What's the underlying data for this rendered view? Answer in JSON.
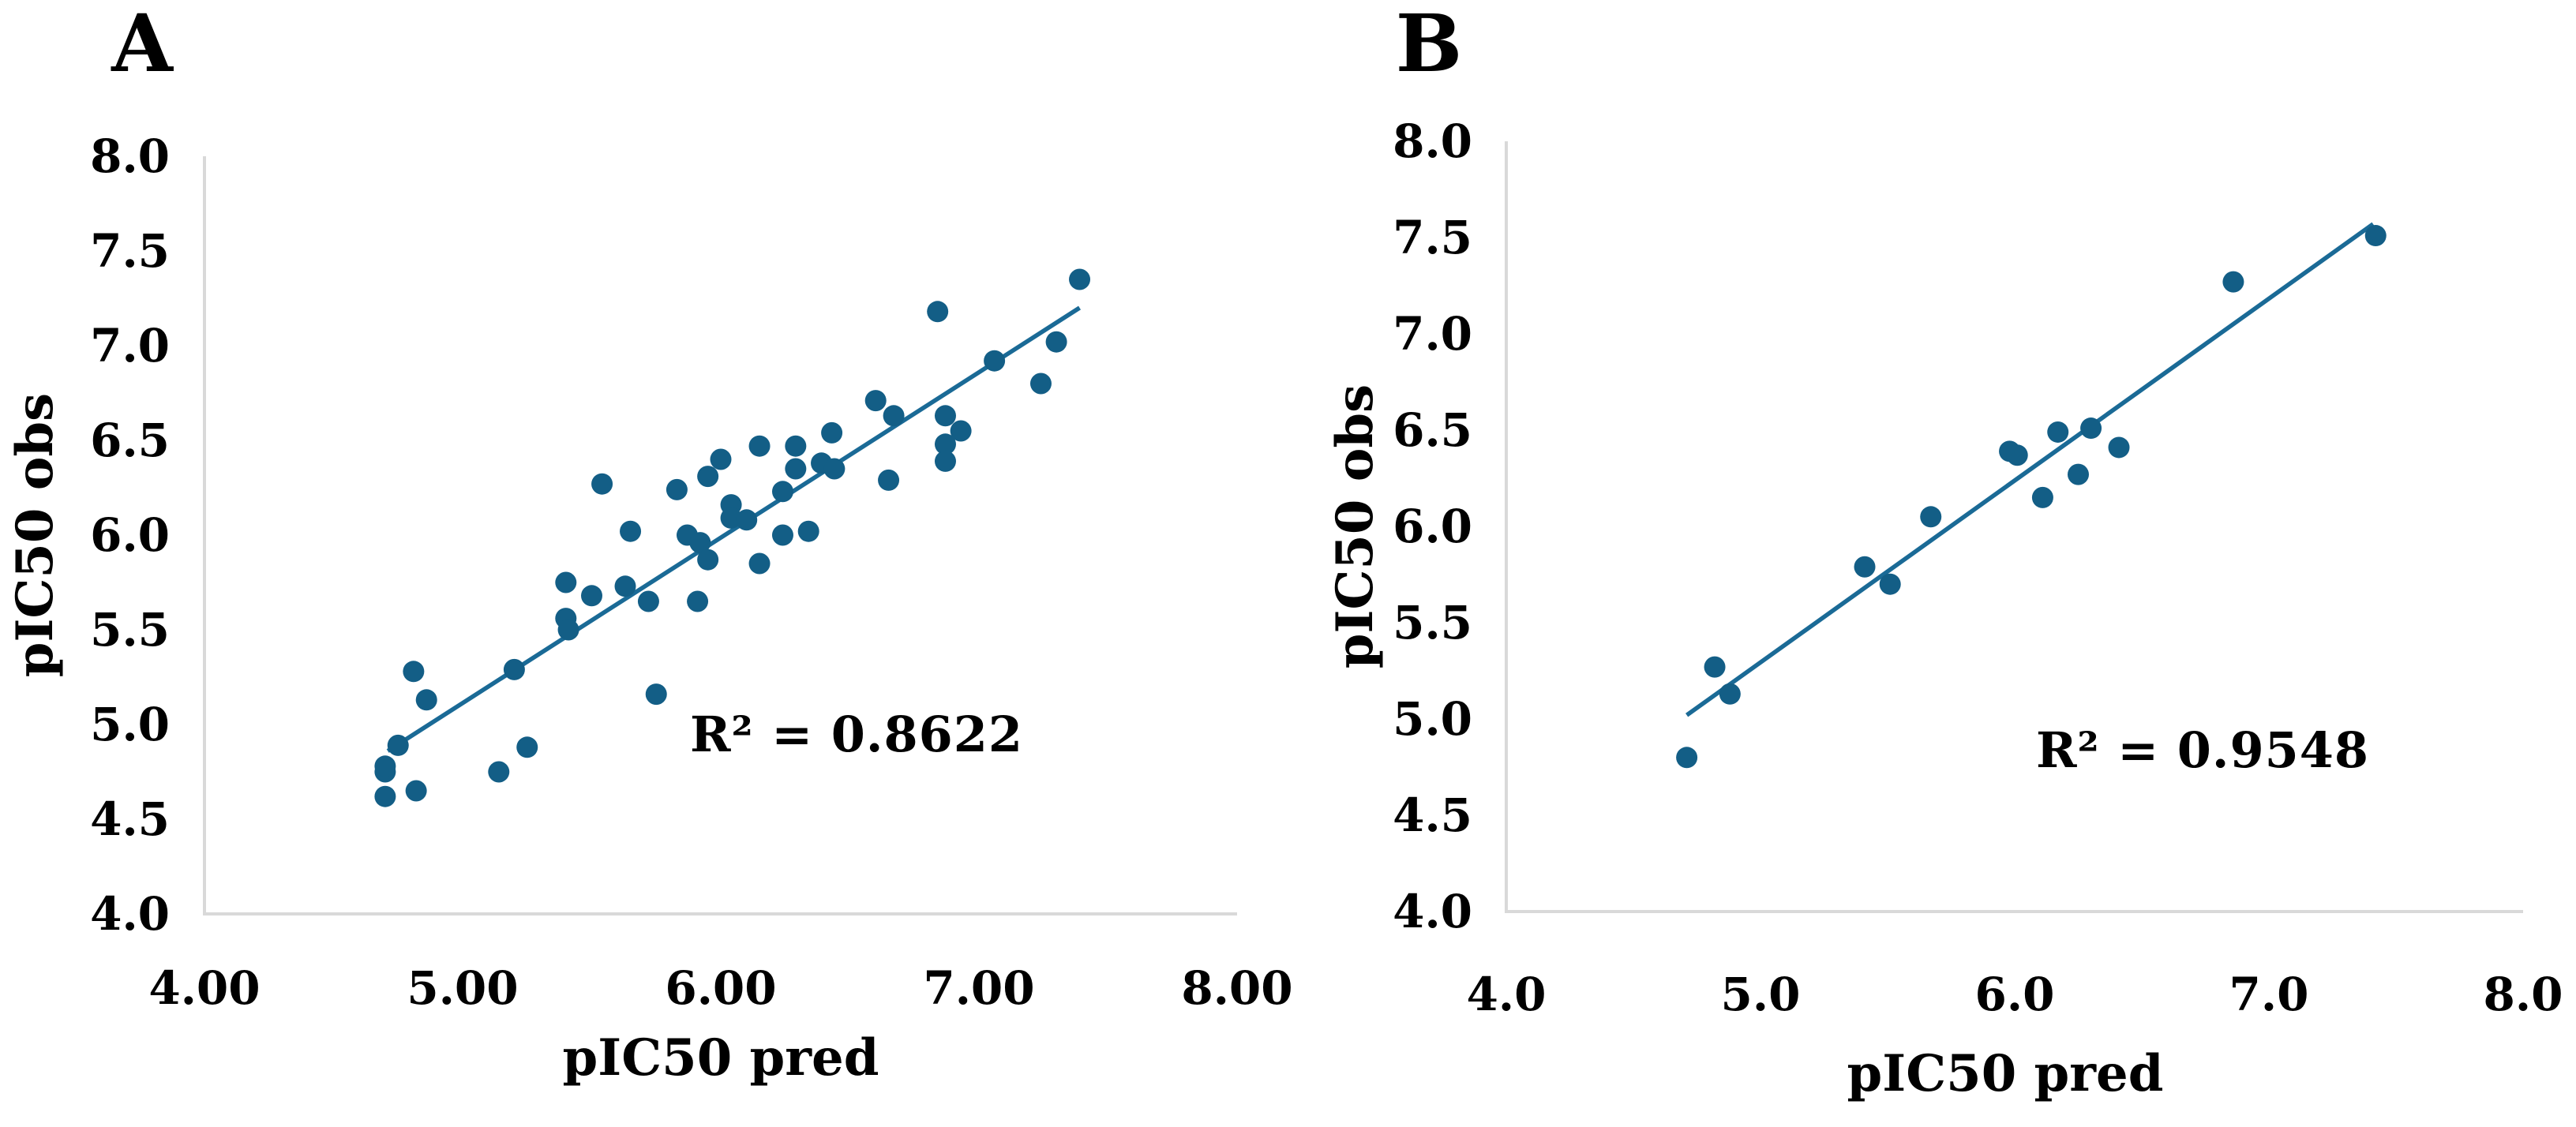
{
  "figure": {
    "description": "Two scatter plots comparing observed pIC50 versus predicted pIC50 with linear trendlines",
    "panels": [
      "A",
      "B"
    ]
  },
  "colors": {
    "marker": "#135e86",
    "trendline": "#1a6a96",
    "axis_line": "#d9d9d9",
    "text": "#000000",
    "background": "#ffffff"
  },
  "chart_data": [
    {
      "type": "scatter",
      "panel_label": "A",
      "title": "",
      "xlabel": "pIC50 pred",
      "ylabel": "pIC50 obs",
      "xlim": [
        4.0,
        8.0
      ],
      "ylim": [
        4.0,
        8.0
      ],
      "grid": false,
      "legend": "none",
      "x_tick_labels": [
        "4.00",
        "5.00",
        "6.00",
        "7.00",
        "8.00"
      ],
      "x_tick_values": [
        4,
        5,
        6,
        7,
        8
      ],
      "y_tick_labels": [
        "4.0",
        "4.5",
        "5.0",
        "5.5",
        "6.0",
        "6.5",
        "7.0",
        "7.5",
        "8.0"
      ],
      "y_tick_values": [
        4,
        4.5,
        5,
        5.5,
        6,
        6.5,
        7,
        7.5,
        8
      ],
      "annotation": "R² = 0.8622",
      "r_squared": 0.8622,
      "annotation_pos": [
        6.53,
        4.86
      ],
      "points": [
        [
          4.7,
          4.62
        ],
        [
          4.82,
          4.65
        ],
        [
          4.7,
          4.75
        ],
        [
          4.7,
          4.78
        ],
        [
          4.75,
          4.89
        ],
        [
          4.86,
          5.13
        ],
        [
          4.81,
          5.28
        ],
        [
          5.14,
          4.75
        ],
        [
          5.25,
          4.88
        ],
        [
          5.2,
          5.29
        ],
        [
          5.75,
          5.16
        ],
        [
          5.4,
          5.56
        ],
        [
          5.41,
          5.5
        ],
        [
          5.4,
          5.75
        ],
        [
          5.5,
          5.68
        ],
        [
          5.63,
          5.73
        ],
        [
          5.72,
          5.65
        ],
        [
          5.91,
          5.65
        ],
        [
          5.54,
          6.27
        ],
        [
          5.65,
          6.02
        ],
        [
          5.83,
          6.24
        ],
        [
          5.87,
          6.0
        ],
        [
          5.92,
          5.96
        ],
        [
          5.95,
          5.87
        ],
        [
          5.95,
          6.31
        ],
        [
          6.0,
          6.4
        ],
        [
          6.04,
          6.16
        ],
        [
          6.04,
          6.09
        ],
        [
          6.1,
          6.08
        ],
        [
          6.15,
          6.47
        ],
        [
          6.15,
          5.85
        ],
        [
          6.24,
          6.23
        ],
        [
          6.24,
          6.0
        ],
        [
          6.29,
          6.47
        ],
        [
          6.29,
          6.35
        ],
        [
          6.34,
          6.02
        ],
        [
          6.39,
          6.38
        ],
        [
          6.43,
          6.54
        ],
        [
          6.44,
          6.35
        ],
        [
          6.6,
          6.71
        ],
        [
          6.65,
          6.29
        ],
        [
          6.67,
          6.63
        ],
        [
          6.84,
          7.18
        ],
        [
          6.87,
          6.63
        ],
        [
          6.87,
          6.48
        ],
        [
          6.87,
          6.39
        ],
        [
          6.93,
          6.55
        ],
        [
          7.06,
          6.92
        ],
        [
          7.24,
          6.8
        ],
        [
          7.3,
          7.02
        ],
        [
          7.39,
          7.35
        ]
      ],
      "trendline": {
        "x1": 4.71,
        "y1": 4.86,
        "x2": 7.39,
        "y2": 7.2
      }
    },
    {
      "type": "scatter",
      "panel_label": "B",
      "title": "",
      "xlabel": "pIC50 pred",
      "ylabel": "pIC50 obs",
      "xlim": [
        4.0,
        8.0
      ],
      "ylim": [
        4.0,
        8.0
      ],
      "grid": false,
      "legend": "none",
      "x_tick_labels": [
        "4.0",
        "5.0",
        "6.0",
        "7.0",
        "8.0"
      ],
      "x_tick_values": [
        4,
        5,
        6,
        7,
        8
      ],
      "y_tick_labels": [
        "4.0",
        "4.5",
        "5.0",
        "5.5",
        "6.0",
        "6.5",
        "7.0",
        "7.5",
        "8.0"
      ],
      "y_tick_values": [
        4,
        4.5,
        5,
        5.5,
        6,
        6.5,
        7,
        7.5,
        8
      ],
      "annotation": "R² = 0.9548",
      "r_squared": 0.9548,
      "annotation_pos": [
        6.74,
        4.8
      ],
      "points": [
        [
          4.71,
          4.8
        ],
        [
          4.82,
          5.27
        ],
        [
          4.88,
          5.13
        ],
        [
          5.41,
          5.79
        ],
        [
          5.51,
          5.7
        ],
        [
          5.67,
          6.05
        ],
        [
          5.98,
          6.39
        ],
        [
          6.01,
          6.37
        ],
        [
          6.17,
          6.49
        ],
        [
          6.3,
          6.51
        ],
        [
          6.11,
          6.15
        ],
        [
          6.25,
          6.27
        ],
        [
          6.41,
          6.41
        ],
        [
          6.86,
          7.27
        ],
        [
          7.42,
          7.51
        ]
      ],
      "trendline": {
        "x1": 4.71,
        "y1": 5.02,
        "x2": 7.41,
        "y2": 7.57
      }
    }
  ]
}
